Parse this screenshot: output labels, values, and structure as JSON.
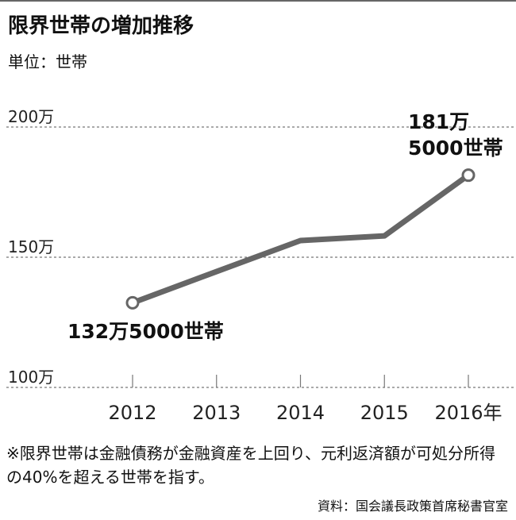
{
  "chart_data": {
    "type": "line",
    "title": "限界世帯の増加推移",
    "subtitle": "単位：世帯",
    "categories": [
      "2012",
      "2013",
      "2014",
      "2015",
      "2016年"
    ],
    "values": [
      132.5,
      144.5,
      156.4,
      158.2,
      181.5
    ],
    "value_labels": [
      "132万5000世帯",
      null,
      null,
      null,
      "181万\n5000世帯"
    ],
    "color": "#666666",
    "ylim": [
      100,
      200
    ],
    "yticks": [
      {
        "value": 100,
        "label": "100万"
      },
      {
        "value": 150,
        "label": "150万"
      },
      {
        "value": 200,
        "label": "200万"
      }
    ],
    "grid": true,
    "note": "※限界世帯は金融債務が金融資産を上回り、元利返済額が可処分所得の40%を超える世帯を指す。",
    "source": "資料：国会議長政策首席秘書官室"
  }
}
